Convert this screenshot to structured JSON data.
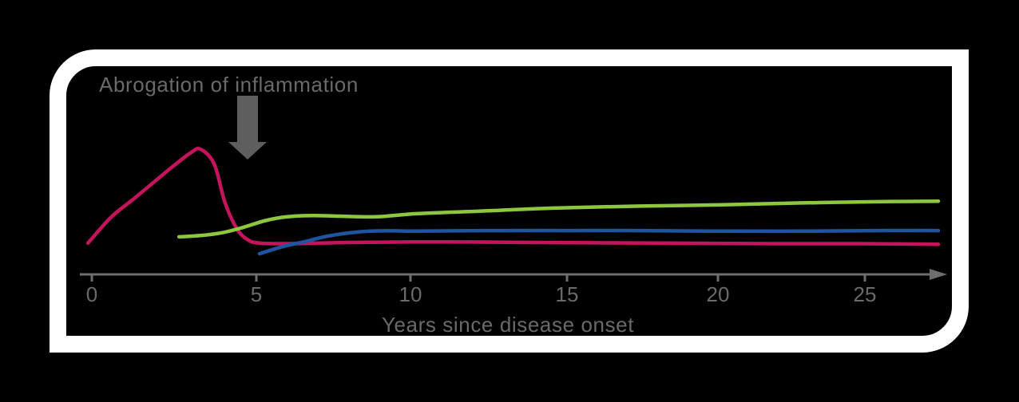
{
  "annotation": {
    "label": "Abrogation of inflammation",
    "icon": "down-arrow-icon",
    "arrow_points_at_year": 5
  },
  "chart_data": {
    "type": "line",
    "title": "",
    "xlabel": "Years since disease onset",
    "ylabel": "",
    "x_ticks": [
      0,
      5,
      10,
      15,
      20,
      25
    ],
    "x_range": [
      0,
      27.5
    ],
    "ylim": [
      0,
      100
    ],
    "y_unit": "relative (y-axis not drawn in figure)",
    "grid": false,
    "legend": "none",
    "series": [
      {
        "name": "magenta-curve",
        "color": "#C2155C",
        "points": [
          [
            -0.12,
            25
          ],
          [
            0.6,
            46
          ],
          [
            1.26,
            60
          ],
          [
            1.9,
            74
          ],
          [
            2.5,
            87
          ],
          [
            3.0,
            97
          ],
          [
            3.3,
            100
          ],
          [
            3.72,
            88
          ],
          [
            4.05,
            57
          ],
          [
            4.42,
            36
          ],
          [
            4.75,
            27.5
          ],
          [
            5.1,
            25
          ],
          [
            6,
            24.5
          ],
          [
            8,
            25.5
          ],
          [
            11,
            26
          ],
          [
            14,
            25.5
          ],
          [
            18,
            25
          ],
          [
            22,
            24.5
          ],
          [
            25,
            24.5
          ],
          [
            27.5,
            24
          ]
        ]
      },
      {
        "name": "green-curve",
        "color": "#8DC63F",
        "points": [
          [
            2.65,
            30
          ],
          [
            3.3,
            31
          ],
          [
            4.0,
            33.5
          ],
          [
            4.6,
            37.5
          ],
          [
            5.3,
            43
          ],
          [
            6.0,
            46
          ],
          [
            6.8,
            47
          ],
          [
            7.7,
            46.5
          ],
          [
            8.9,
            46
          ],
          [
            10.2,
            48.5
          ],
          [
            12.2,
            50.5
          ],
          [
            14.7,
            53
          ],
          [
            17.4,
            54.5
          ],
          [
            20,
            55.5
          ],
          [
            22.7,
            57
          ],
          [
            25.4,
            58
          ],
          [
            27.5,
            58.5
          ]
        ]
      },
      {
        "name": "blue-curve",
        "color": "#1F55A0",
        "points": [
          [
            5.1,
            16.5
          ],
          [
            5.9,
            22.5
          ],
          [
            6.55,
            26
          ],
          [
            7.3,
            30.5
          ],
          [
            8.35,
            34
          ],
          [
            9.3,
            34.8
          ],
          [
            10.2,
            34.5
          ],
          [
            12.5,
            35
          ],
          [
            15,
            35
          ],
          [
            17.4,
            35
          ],
          [
            20,
            34.5
          ],
          [
            22.7,
            34.5
          ],
          [
            25.4,
            35
          ],
          [
            27.5,
            35
          ]
        ]
      }
    ]
  },
  "colors": {
    "background": "#000000",
    "frame": "#FFFFFF",
    "axis": "#6E6E6E",
    "text": "#6A6A6A",
    "annotation_arrow": "#5E5E5E"
  }
}
